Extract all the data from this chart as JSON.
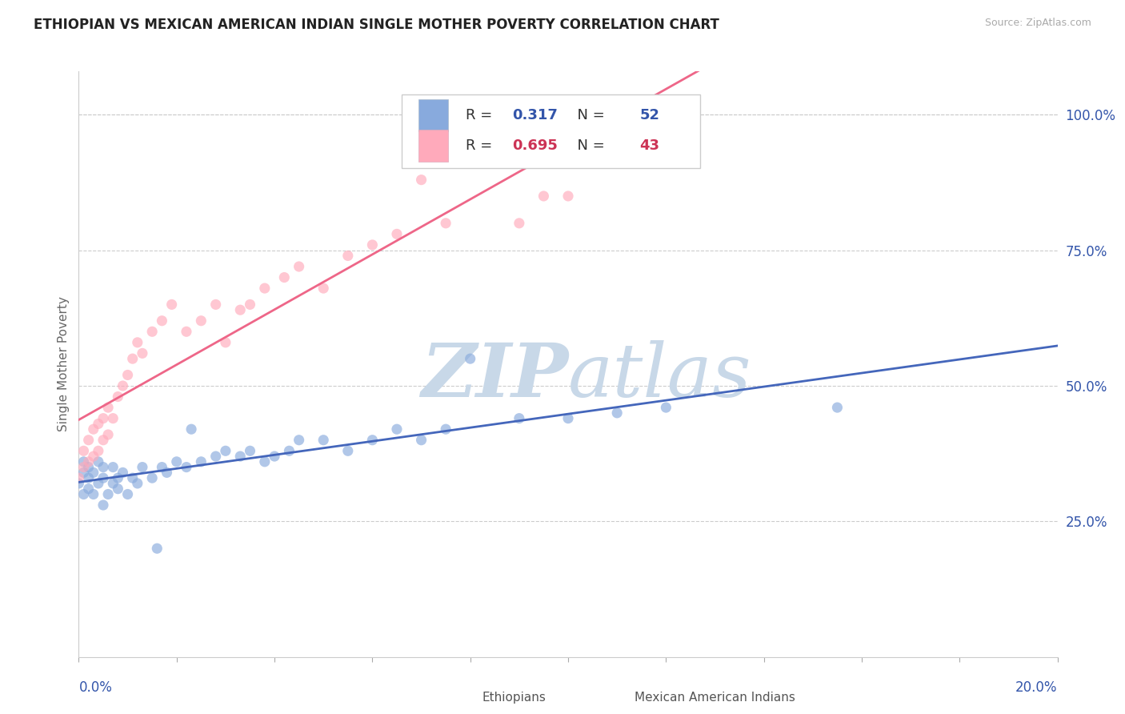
{
  "title": "ETHIOPIAN VS MEXICAN AMERICAN INDIAN SINGLE MOTHER POVERTY CORRELATION CHART",
  "source": "Source: ZipAtlas.com",
  "ylabel": "Single Mother Poverty",
  "legend1_r": "0.317",
  "legend1_n": "52",
  "legend2_r": "0.695",
  "legend2_n": "43",
  "blue_color": "#88AADD",
  "pink_color": "#FFAABB",
  "blue_line_color": "#4466BB",
  "pink_line_color": "#EE6688",
  "blue_text_color": "#3355AA",
  "pink_text_color": "#CC3355",
  "watermark_color": "#C8D8E8",
  "ytick_labels": [
    "25.0%",
    "50.0%",
    "75.0%",
    "100.0%"
  ],
  "ytick_values": [
    0.25,
    0.5,
    0.75,
    1.0
  ],
  "xmin": 0.0,
  "xmax": 0.2,
  "ymin": 0.0,
  "ymax": 1.08,
  "blue_x": [
    0.0,
    0.001,
    0.001,
    0.001,
    0.002,
    0.002,
    0.002,
    0.003,
    0.003,
    0.004,
    0.004,
    0.005,
    0.005,
    0.005,
    0.006,
    0.007,
    0.007,
    0.008,
    0.008,
    0.009,
    0.01,
    0.011,
    0.012,
    0.013,
    0.015,
    0.016,
    0.017,
    0.018,
    0.02,
    0.022,
    0.023,
    0.025,
    0.028,
    0.03,
    0.033,
    0.035,
    0.038,
    0.04,
    0.043,
    0.045,
    0.05,
    0.055,
    0.06,
    0.065,
    0.07,
    0.075,
    0.08,
    0.09,
    0.1,
    0.11,
    0.12,
    0.155
  ],
  "blue_y": [
    0.32,
    0.3,
    0.34,
    0.36,
    0.31,
    0.33,
    0.35,
    0.3,
    0.34,
    0.32,
    0.36,
    0.28,
    0.33,
    0.35,
    0.3,
    0.32,
    0.35,
    0.31,
    0.33,
    0.34,
    0.3,
    0.33,
    0.32,
    0.35,
    0.33,
    0.2,
    0.35,
    0.34,
    0.36,
    0.35,
    0.42,
    0.36,
    0.37,
    0.38,
    0.37,
    0.38,
    0.36,
    0.37,
    0.38,
    0.4,
    0.4,
    0.38,
    0.4,
    0.42,
    0.4,
    0.42,
    0.55,
    0.44,
    0.44,
    0.45,
    0.46,
    0.46
  ],
  "pink_x": [
    0.0,
    0.001,
    0.001,
    0.002,
    0.002,
    0.003,
    0.003,
    0.004,
    0.004,
    0.005,
    0.005,
    0.006,
    0.006,
    0.007,
    0.008,
    0.009,
    0.01,
    0.011,
    0.012,
    0.013,
    0.015,
    0.017,
    0.019,
    0.022,
    0.025,
    0.028,
    0.03,
    0.033,
    0.035,
    0.038,
    0.042,
    0.045,
    0.05,
    0.055,
    0.06,
    0.065,
    0.07,
    0.075,
    0.08,
    0.09,
    0.095,
    0.1,
    0.11
  ],
  "pink_y": [
    0.33,
    0.35,
    0.38,
    0.36,
    0.4,
    0.37,
    0.42,
    0.38,
    0.43,
    0.4,
    0.44,
    0.41,
    0.46,
    0.44,
    0.48,
    0.5,
    0.52,
    0.55,
    0.58,
    0.56,
    0.6,
    0.62,
    0.65,
    0.6,
    0.62,
    0.65,
    0.58,
    0.64,
    0.65,
    0.68,
    0.7,
    0.72,
    0.68,
    0.74,
    0.76,
    0.78,
    0.88,
    0.8,
    0.95,
    0.8,
    0.85,
    0.85,
    0.91
  ]
}
